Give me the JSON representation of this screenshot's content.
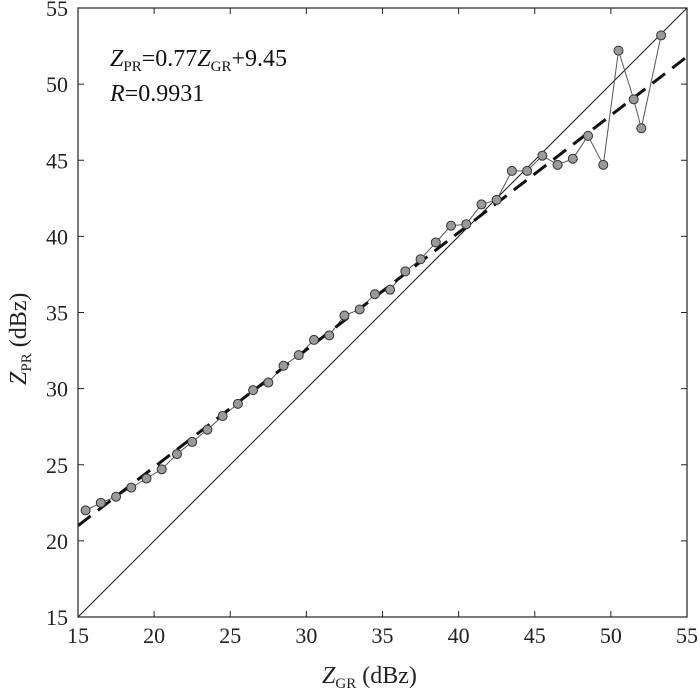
{
  "chart_data": {
    "type": "scatter",
    "xlim": [
      15,
      55
    ],
    "ylim": [
      15,
      55
    ],
    "x_ticks": [
      15,
      20,
      25,
      30,
      35,
      40,
      45,
      50,
      55
    ],
    "y_ticks": [
      15,
      20,
      25,
      30,
      35,
      40,
      45,
      50,
      55
    ],
    "grid": false,
    "xlabel": {
      "main": "Z",
      "sub": "GR",
      "unit": " (dBz)"
    },
    "ylabel": {
      "main": "Z",
      "sub": "PR",
      "unit": " (dBz)"
    },
    "annotation": {
      "equation": {
        "lhs_main": "Z",
        "lhs_sub": "PR",
        "mid": "=0.77",
        "rhs_main": "Z",
        "rhs_sub": "GR",
        "tail": "+9.45"
      },
      "r": {
        "main": "R",
        "value": "=0.9931"
      }
    },
    "fit": {
      "slope": 0.77,
      "intercept": 9.45
    },
    "identity_line": true,
    "points": {
      "x": [
        15.5,
        16.5,
        17.5,
        18.5,
        19.5,
        20.5,
        21.5,
        22.5,
        23.5,
        24.5,
        25.5,
        26.5,
        27.5,
        28.5,
        29.5,
        30.5,
        31.5,
        32.5,
        33.5,
        34.5,
        35.5,
        36.5,
        37.5,
        38.5,
        39.5,
        40.5,
        41.5,
        42.5,
        43.5,
        44.5,
        45.5,
        46.5,
        47.5,
        48.5,
        49.5,
        50.5,
        51.5,
        52.0,
        53.3
      ],
      "y": [
        22.0,
        22.5,
        22.9,
        23.5,
        24.1,
        24.7,
        25.7,
        26.5,
        27.3,
        28.2,
        29.0,
        29.9,
        30.4,
        31.5,
        32.2,
        33.2,
        33.5,
        34.8,
        35.2,
        36.2,
        36.5,
        37.7,
        38.5,
        39.6,
        40.7,
        40.8,
        42.1,
        42.4,
        44.3,
        44.3,
        45.3,
        44.7,
        45.1,
        46.6,
        44.7,
        52.2,
        49.0,
        47.1,
        53.2
      ]
    },
    "colors": {
      "marker_fill": "#9a9a9a",
      "marker_stroke": "#333333",
      "line": "#555555",
      "fit": "#111111",
      "identity": "#222222"
    }
  }
}
